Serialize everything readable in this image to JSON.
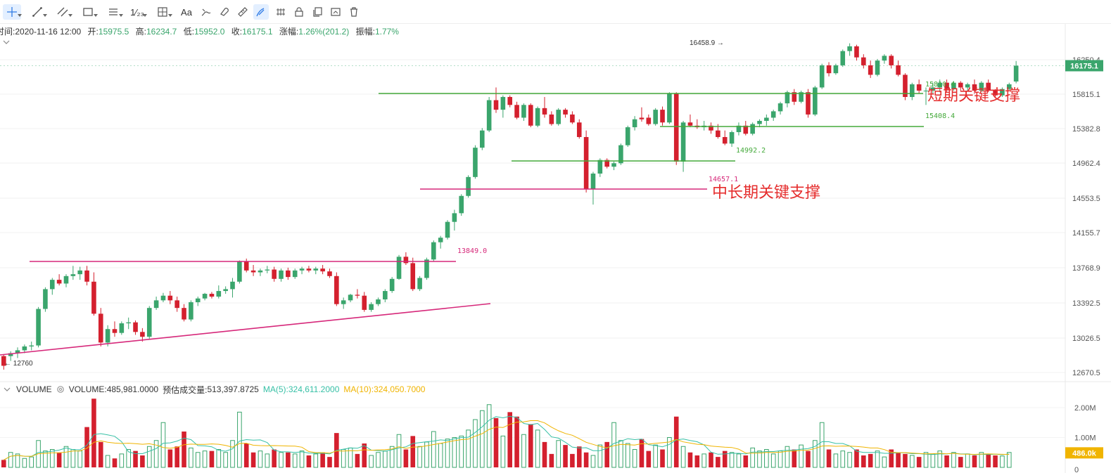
{
  "toolbar": {
    "items": [
      {
        "name": "crosshair-tool",
        "icon": "crosshair-icon",
        "active": true
      },
      {
        "name": "trend-line-tool",
        "icon": "line-icon"
      },
      {
        "name": "parallel-channel-tool",
        "icon": "channel-icon"
      },
      {
        "name": "rectangle-tool",
        "icon": "rectangle-icon"
      },
      {
        "name": "fib-retracement-tool",
        "icon": "fib-icon"
      },
      {
        "name": "pattern-tool",
        "icon": "pattern-icon",
        "label": "1⁄₂₃"
      },
      {
        "name": "measure-tool",
        "icon": "measure-icon"
      },
      {
        "name": "text-tool",
        "icon": "text-icon",
        "label": "Aa"
      },
      {
        "name": "brush-tool",
        "icon": "brush-icon"
      },
      {
        "name": "magnet-tool",
        "icon": "magnet-icon"
      },
      {
        "name": "ruler-tool",
        "icon": "ruler-icon"
      },
      {
        "name": "drawing-mode-tool",
        "icon": "pen-icon",
        "active": true
      },
      {
        "name": "hide-drawings-tool",
        "icon": "eye-icon"
      },
      {
        "name": "lock-drawings-tool",
        "icon": "lock-icon"
      },
      {
        "name": "clone-tool",
        "icon": "copy-icon"
      },
      {
        "name": "screenshot-tool",
        "icon": "camera-icon"
      },
      {
        "name": "delete-tool",
        "icon": "trash-icon"
      }
    ]
  },
  "ohlc": {
    "time_label": "时间:",
    "time": "2020-11-16 12:00",
    "open_label": "开:",
    "open": "15975.5",
    "high_label": "高:",
    "high": "16234.7",
    "low_label": "低:",
    "low": "15952.0",
    "close_label": "收:",
    "close": "16175.1",
    "change_label": "涨幅:",
    "change": "1.26%(201.2)",
    "amplitude_label": "振幅:",
    "amplitude": "1.77%"
  },
  "price_axis": {
    "ticks": [
      "16250.4",
      "15815.1",
      "15382.8",
      "14962.4",
      "14553.5",
      "14155.7",
      "13768.9",
      "13392.5",
      "13026.5",
      "12670.5"
    ],
    "current_price": "16175.1"
  },
  "annotations": {
    "high_marker": "16458.9",
    "low_marker": "12760",
    "levels": [
      {
        "value": "15810.4",
        "label": "短期关键支撑",
        "color": "#44a93a"
      },
      {
        "value": "15408.4",
        "color": "#44a93a"
      },
      {
        "value": "14992.2",
        "color": "#44a93a"
      },
      {
        "value": "14657.1",
        "label": "中长期关键支撑",
        "color": "#d6287a"
      },
      {
        "value": "13849.0",
        "color": "#d6287a"
      }
    ]
  },
  "volume": {
    "title": "VOLUME",
    "value_label": "VOLUME:",
    "value": "485,981.0000",
    "est_label": "预估成交量:",
    "est_value": "513,397.8725",
    "ma5_label": "MA(5):",
    "ma5_value": "324,611.2000",
    "ma10_label": "MA(10):",
    "ma10_value": "324,050.7000",
    "axis_ticks": [
      "2.00M",
      "1.00M",
      "0"
    ],
    "current": "486.0k"
  },
  "colors": {
    "up": "#3aa56c",
    "down": "#d4202e",
    "ma5": "#37c0a6",
    "ma10": "#f0b400",
    "level_green": "#44a93a",
    "level_pink": "#d6287a",
    "price_tag": "#3aa56c",
    "vol_tag": "#f0b400"
  },
  "chart_data": {
    "type": "candlestick",
    "price_range": [
      12670.5,
      16458.9
    ],
    "volume_range": [
      0,
      2.4
    ],
    "candles": [
      [
        12740,
        12860,
        12700,
        12840,
        "d"
      ],
      [
        12840,
        12890,
        12790,
        12870,
        "u"
      ],
      [
        12870,
        12930,
        12820,
        12900,
        "u"
      ],
      [
        12900,
        12960,
        12870,
        12940,
        "u"
      ],
      [
        12940,
        12990,
        12900,
        12950,
        "u"
      ],
      [
        12950,
        13350,
        12930,
        13330,
        "u"
      ],
      [
        13330,
        13560,
        13300,
        13540,
        "u"
      ],
      [
        13540,
        13660,
        13480,
        13640,
        "u"
      ],
      [
        13640,
        13700,
        13580,
        13600,
        "d"
      ],
      [
        13600,
        13700,
        13560,
        13680,
        "u"
      ],
      [
        13680,
        13790,
        13640,
        13700,
        "u"
      ],
      [
        13700,
        13780,
        13640,
        13740,
        "u"
      ],
      [
        13740,
        13790,
        13580,
        13620,
        "d"
      ],
      [
        13620,
        13720,
        13260,
        13280,
        "d"
      ],
      [
        13280,
        13340,
        12940,
        12980,
        "d"
      ],
      [
        12980,
        13160,
        12940,
        13120,
        "u"
      ],
      [
        13120,
        13200,
        13040,
        13080,
        "d"
      ],
      [
        13080,
        13200,
        13060,
        13180,
        "u"
      ],
      [
        13180,
        13240,
        13120,
        13190,
        "u"
      ],
      [
        13190,
        13210,
        13060,
        13090,
        "d"
      ],
      [
        13090,
        13130,
        12990,
        13040,
        "d"
      ],
      [
        13040,
        13360,
        13020,
        13340,
        "u"
      ],
      [
        13340,
        13460,
        13320,
        13420,
        "u"
      ],
      [
        13420,
        13500,
        13400,
        13470,
        "u"
      ],
      [
        13470,
        13520,
        13380,
        13420,
        "d"
      ],
      [
        13420,
        13460,
        13300,
        13340,
        "d"
      ],
      [
        13340,
        13380,
        13200,
        13220,
        "d"
      ],
      [
        13220,
        13420,
        13200,
        13400,
        "u"
      ],
      [
        13400,
        13460,
        13360,
        13440,
        "u"
      ],
      [
        13440,
        13500,
        13420,
        13490,
        "u"
      ],
      [
        13490,
        13510,
        13440,
        13460,
        "d"
      ],
      [
        13460,
        13580,
        13440,
        13520,
        "u"
      ],
      [
        13520,
        13570,
        13490,
        13540,
        "u"
      ],
      [
        13540,
        13660,
        13450,
        13620,
        "u"
      ],
      [
        13620,
        13850,
        13600,
        13840,
        "u"
      ],
      [
        13840,
        13870,
        13720,
        13740,
        "d"
      ],
      [
        13740,
        13800,
        13680,
        13720,
        "d"
      ],
      [
        13720,
        13760,
        13680,
        13740,
        "u"
      ],
      [
        13740,
        13790,
        13710,
        13750,
        "u"
      ],
      [
        13750,
        13780,
        13620,
        13650,
        "d"
      ],
      [
        13650,
        13760,
        13620,
        13740,
        "u"
      ],
      [
        13740,
        13770,
        13640,
        13670,
        "d"
      ],
      [
        13670,
        13760,
        13650,
        13740,
        "u"
      ],
      [
        13740,
        13780,
        13700,
        13760,
        "u"
      ],
      [
        13760,
        13790,
        13720,
        13740,
        "d"
      ],
      [
        13740,
        13780,
        13700,
        13760,
        "u"
      ],
      [
        13760,
        13800,
        13700,
        13730,
        "d"
      ],
      [
        13730,
        13760,
        13660,
        13680,
        "d"
      ],
      [
        13680,
        13720,
        13360,
        13380,
        "d"
      ],
      [
        13380,
        13450,
        13330,
        13420,
        "u"
      ],
      [
        13420,
        13490,
        13400,
        13480,
        "u"
      ],
      [
        13480,
        13540,
        13440,
        13470,
        "d"
      ],
      [
        13470,
        13510,
        13300,
        13320,
        "d"
      ],
      [
        13320,
        13400,
        13300,
        13380,
        "u"
      ],
      [
        13380,
        13450,
        13360,
        13430,
        "u"
      ],
      [
        13430,
        13540,
        13400,
        13520,
        "u"
      ],
      [
        13520,
        13670,
        13500,
        13650,
        "u"
      ],
      [
        13650,
        13910,
        13640,
        13890,
        "u"
      ],
      [
        13890,
        13940,
        13800,
        13820,
        "d"
      ],
      [
        13820,
        13880,
        13520,
        13540,
        "d"
      ],
      [
        13540,
        13680,
        13520,
        13660,
        "u"
      ],
      [
        13660,
        13880,
        13640,
        13860,
        "u"
      ],
      [
        13860,
        14070,
        13840,
        14050,
        "u"
      ],
      [
        14050,
        14120,
        13980,
        14100,
        "u"
      ],
      [
        14100,
        14300,
        14080,
        14280,
        "u"
      ],
      [
        14280,
        14420,
        14180,
        14380,
        "u"
      ],
      [
        14380,
        14600,
        14350,
        14580,
        "u"
      ],
      [
        14580,
        14820,
        14560,
        14800,
        "u"
      ],
      [
        14800,
        15180,
        14780,
        15150,
        "u"
      ],
      [
        15150,
        15390,
        15120,
        15360,
        "u"
      ],
      [
        15360,
        15780,
        15340,
        15740,
        "u"
      ],
      [
        15740,
        15900,
        15580,
        15620,
        "d"
      ],
      [
        15620,
        15800,
        15520,
        15780,
        "u"
      ],
      [
        15780,
        15800,
        15650,
        15680,
        "d"
      ],
      [
        15680,
        15720,
        15500,
        15520,
        "d"
      ],
      [
        15520,
        15700,
        15480,
        15680,
        "u"
      ],
      [
        15680,
        15700,
        15400,
        15420,
        "d"
      ],
      [
        15420,
        15660,
        15400,
        15640,
        "u"
      ],
      [
        15640,
        15780,
        15520,
        15560,
        "d"
      ],
      [
        15560,
        15600,
        15420,
        15440,
        "d"
      ],
      [
        15440,
        15640,
        15420,
        15620,
        "u"
      ],
      [
        15620,
        15640,
        15520,
        15560,
        "d"
      ],
      [
        15560,
        15600,
        15440,
        15460,
        "d"
      ],
      [
        15460,
        15500,
        15260,
        15280,
        "d"
      ],
      [
        15280,
        15360,
        14620,
        14660,
        "d"
      ],
      [
        14660,
        14860,
        14480,
        14840,
        "u"
      ],
      [
        14840,
        15020,
        14800,
        15000,
        "u"
      ],
      [
        15000,
        15020,
        14900,
        14920,
        "d"
      ],
      [
        14920,
        14980,
        14880,
        14960,
        "u"
      ],
      [
        14960,
        15200,
        14940,
        15180,
        "u"
      ],
      [
        15180,
        15420,
        15160,
        15400,
        "u"
      ],
      [
        15400,
        15540,
        15360,
        15500,
        "u"
      ],
      [
        15500,
        15650,
        15470,
        15520,
        "d"
      ],
      [
        15520,
        15560,
        15420,
        15440,
        "d"
      ],
      [
        15440,
        15640,
        15420,
        15620,
        "u"
      ],
      [
        15620,
        15660,
        15420,
        15460,
        "d"
      ],
      [
        15460,
        15840,
        15440,
        15820,
        "u"
      ],
      [
        15820,
        15840,
        14940,
        14980,
        "d"
      ],
      [
        14980,
        15480,
        14860,
        15460,
        "u"
      ],
      [
        15460,
        15560,
        15400,
        15420,
        "d"
      ],
      [
        15420,
        15500,
        15380,
        15400,
        "d"
      ],
      [
        15400,
        15480,
        15360,
        15420,
        "u"
      ],
      [
        15420,
        15460,
        15320,
        15360,
        "d"
      ],
      [
        15360,
        15440,
        15260,
        15280,
        "d"
      ],
      [
        15280,
        15360,
        15180,
        15200,
        "d"
      ],
      [
        15200,
        15360,
        15160,
        15340,
        "u"
      ],
      [
        15340,
        15460,
        15300,
        15420,
        "u"
      ],
      [
        15420,
        15480,
        15300,
        15320,
        "d"
      ],
      [
        15320,
        15460,
        15300,
        15440,
        "u"
      ],
      [
        15440,
        15500,
        15400,
        15480,
        "u"
      ],
      [
        15480,
        15560,
        15420,
        15520,
        "u"
      ],
      [
        15520,
        15620,
        15480,
        15600,
        "u"
      ],
      [
        15600,
        15720,
        15560,
        15700,
        "u"
      ],
      [
        15700,
        15860,
        15650,
        15840,
        "u"
      ],
      [
        15840,
        15880,
        15680,
        15720,
        "d"
      ],
      [
        15720,
        15860,
        15700,
        15840,
        "u"
      ],
      [
        15840,
        15880,
        15520,
        15560,
        "d"
      ],
      [
        15560,
        15920,
        15540,
        15900,
        "u"
      ],
      [
        15900,
        16200,
        15880,
        16180,
        "u"
      ],
      [
        16180,
        16220,
        16040,
        16080,
        "d"
      ],
      [
        16080,
        16200,
        16060,
        16180,
        "u"
      ],
      [
        16180,
        16380,
        16160,
        16360,
        "u"
      ],
      [
        16360,
        16458,
        16300,
        16420,
        "u"
      ],
      [
        16420,
        16440,
        16240,
        16280,
        "d"
      ],
      [
        16280,
        16320,
        16140,
        16180,
        "d"
      ],
      [
        16180,
        16240,
        16020,
        16060,
        "d"
      ],
      [
        16060,
        16260,
        16040,
        16240,
        "u"
      ],
      [
        16240,
        16320,
        16200,
        16300,
        "u"
      ],
      [
        16300,
        16320,
        16140,
        16180,
        "d"
      ],
      [
        16180,
        16240,
        16040,
        16060,
        "d"
      ],
      [
        16060,
        16080,
        15740,
        15780,
        "d"
      ],
      [
        15780,
        15960,
        15740,
        15940,
        "u"
      ],
      [
        15940,
        16000,
        15820,
        15860,
        "d"
      ],
      [
        15860,
        15900,
        15680,
        15860,
        "u"
      ],
      [
        15860,
        15960,
        15820,
        15900,
        "u"
      ],
      [
        15900,
        16000,
        15840,
        15960,
        "u"
      ],
      [
        15960,
        16000,
        15840,
        15880,
        "d"
      ],
      [
        15880,
        15980,
        15860,
        15960,
        "u"
      ],
      [
        15960,
        15980,
        15860,
        15900,
        "d"
      ],
      [
        15900,
        15960,
        15860,
        15940,
        "u"
      ],
      [
        15940,
        16000,
        15820,
        15860,
        "d"
      ],
      [
        15860,
        15980,
        15840,
        15960,
        "u"
      ],
      [
        15960,
        16000,
        15840,
        15860,
        "d"
      ],
      [
        15860,
        15880,
        15780,
        15800,
        "d"
      ],
      [
        15800,
        15900,
        15780,
        15880,
        "u"
      ],
      [
        15880,
        15960,
        15860,
        15940,
        "u"
      ],
      [
        15975.5,
        16234.7,
        15952.0,
        16175.1,
        "u"
      ]
    ],
    "volumes": [
      0.25,
      0.5,
      0.45,
      0.3,
      0.35,
      0.9,
      0.55,
      0.6,
      0.5,
      0.7,
      0.6,
      0.55,
      1.35,
      2.3,
      0.85,
      0.4,
      0.3,
      0.45,
      0.6,
      0.55,
      0.4,
      0.7,
      0.9,
      1.5,
      0.6,
      0.7,
      1.2,
      0.65,
      0.5,
      0.55,
      0.55,
      0.6,
      0.5,
      0.9,
      1.85,
      0.8,
      0.5,
      0.55,
      0.45,
      0.6,
      0.5,
      0.5,
      0.45,
      0.55,
      0.4,
      0.45,
      0.5,
      0.35,
      1.15,
      0.6,
      0.65,
      0.45,
      0.8,
      0.4,
      0.5,
      0.55,
      0.7,
      1.1,
      0.6,
      1.05,
      0.7,
      0.85,
      1.2,
      0.8,
      0.95,
      1.0,
      1.05,
      1.25,
      1.6,
      1.9,
      2.1,
      1.65,
      1.05,
      1.85,
      1.7,
      1.1,
      1.45,
      1.25,
      0.85,
      0.45,
      0.9,
      0.75,
      0.45,
      0.7,
      0.5,
      0.4,
      0.75,
      0.85,
      1.5,
      0.9,
      0.8,
      0.6,
      0.95,
      0.55,
      0.75,
      0.6,
      1.0,
      1.7,
      0.7,
      0.5,
      0.4,
      0.45,
      0.5,
      0.35,
      0.55,
      0.5,
      0.45,
      0.4,
      0.65,
      0.55,
      0.6,
      0.45,
      0.55,
      0.7,
      0.6,
      0.75,
      0.55,
      0.9,
      1.5,
      0.6,
      0.45,
      0.55,
      0.5,
      0.6,
      0.4,
      0.45,
      0.55,
      0.35,
      0.6,
      0.5,
      0.45,
      0.4,
      0.35,
      0.5,
      0.45,
      0.55,
      0.4,
      0.5,
      0.35,
      0.45,
      0.4,
      0.5,
      0.45,
      0.4,
      0.38,
      0.5
    ]
  }
}
